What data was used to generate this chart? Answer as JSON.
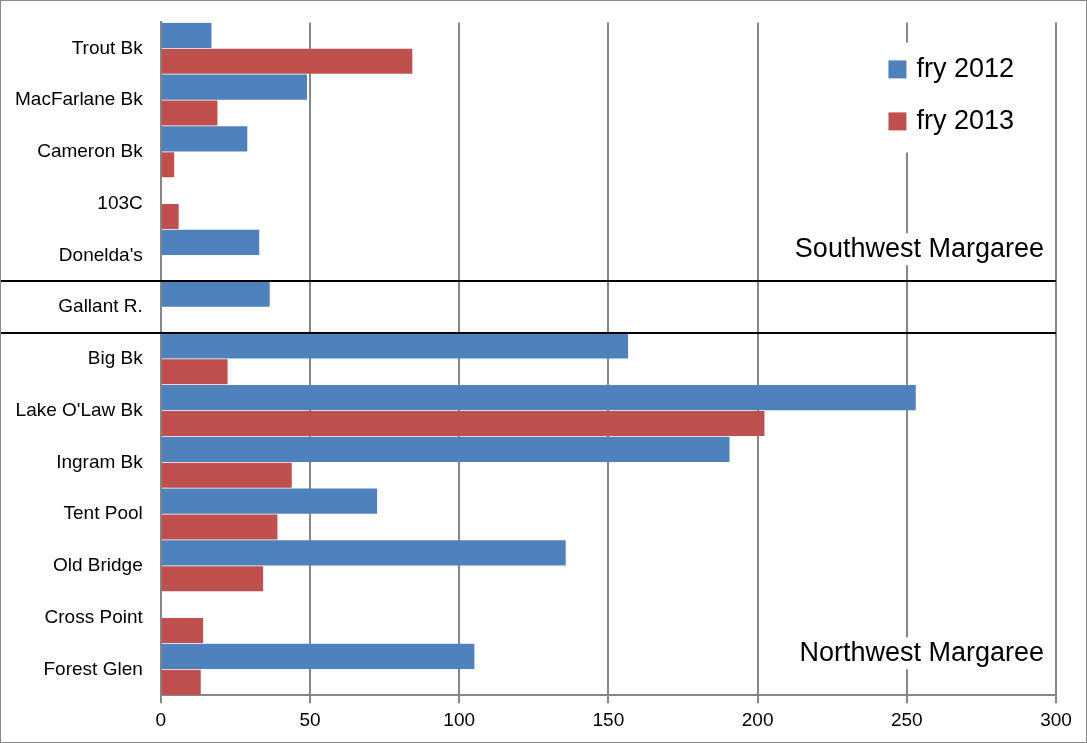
{
  "chart_data": {
    "type": "bar",
    "orientation": "horizontal",
    "categories": [
      "Trout Bk",
      "MacFarlane Bk",
      "Cameron Bk",
      "103C",
      "Donelda's",
      "Gallant R.",
      "Big Bk",
      "Lake O'Law Bk",
      "Ingram Bk",
      "Tent Pool",
      "Old Bridge",
      "Cross Point",
      "Forest Glen"
    ],
    "series": [
      {
        "name": "fry 2012",
        "color": "#4f81bd",
        "values": [
          17,
          49,
          29,
          null,
          33,
          36.5,
          156.6,
          253,
          190.6,
          72.5,
          135.7,
          null,
          105.1
        ]
      },
      {
        "name": "fry 2013",
        "color": "#c0504d",
        "values": [
          84.3,
          19,
          4.5,
          6,
          null,
          null,
          22.4,
          202.3,
          43.9,
          39.1,
          34.3,
          14.2,
          13.4
        ]
      }
    ],
    "xlim": [
      0,
      300
    ],
    "xticks": [
      0,
      50,
      100,
      150,
      200,
      250,
      300
    ],
    "grid": "x",
    "legend": "top right",
    "annotations": [
      "Southwest Margaree",
      "Northwest Margaree"
    ]
  }
}
